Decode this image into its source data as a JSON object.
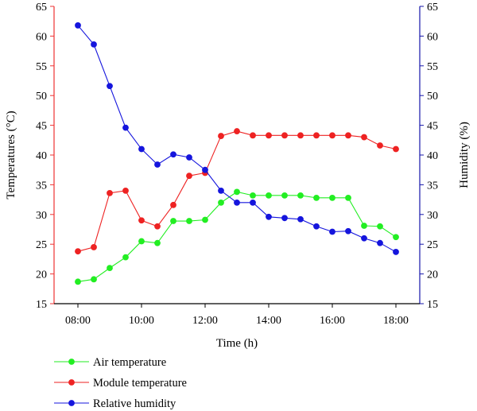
{
  "chart_data": {
    "type": "line",
    "xlabel": "Time (h)",
    "ylabel_left": "Temperatures (°C)",
    "ylabel_right": "Humidity (%)",
    "x_ticks": [
      "08:00",
      "10:00",
      "12:00",
      "14:00",
      "16:00",
      "18:00"
    ],
    "xlim": [
      "07:15",
      "18:45"
    ],
    "ylim_left": [
      15,
      65
    ],
    "ylim_right": [
      15,
      65
    ],
    "y_ticks_left": [
      15,
      20,
      25,
      30,
      35,
      40,
      45,
      50,
      55,
      60,
      65
    ],
    "y_ticks_right": [
      15,
      20,
      25,
      30,
      35,
      40,
      45,
      50,
      55,
      60,
      65
    ],
    "grid": false,
    "legend_position": "bottom-left",
    "x": [
      "08:00",
      "08:30",
      "09:00",
      "09:30",
      "10:00",
      "10:30",
      "11:00",
      "11:30",
      "12:00",
      "12:30",
      "13:00",
      "13:30",
      "14:00",
      "14:30",
      "15:00",
      "15:30",
      "16:00",
      "16:30",
      "17:00",
      "17:30",
      "18:00"
    ],
    "series": [
      {
        "name": "Air temperature",
        "axis": "left",
        "color": "#22ee22",
        "values": [
          18.7,
          19.1,
          21.0,
          22.8,
          25.5,
          25.2,
          28.9,
          28.9,
          29.1,
          32.0,
          33.8,
          33.2,
          33.2,
          33.2,
          33.2,
          32.8,
          32.8,
          32.8,
          28.1,
          28.0,
          26.2
        ]
      },
      {
        "name": "Module temperature",
        "axis": "left",
        "color": "#ee2222",
        "values": [
          23.8,
          24.5,
          33.6,
          34.0,
          29.0,
          28.0,
          31.6,
          36.5,
          37.0,
          43.2,
          44.0,
          43.3,
          43.3,
          43.3,
          43.3,
          43.3,
          43.3,
          43.3,
          43.0,
          41.6,
          41.0
        ]
      },
      {
        "name": "Relative humidity",
        "axis": "right",
        "color": "#1515dd",
        "values": [
          61.8,
          58.6,
          51.6,
          44.6,
          41.0,
          38.4,
          40.1,
          39.6,
          37.5,
          34.0,
          32.0,
          32.0,
          29.6,
          29.4,
          29.2,
          28.0,
          27.1,
          27.2,
          26.0,
          25.2,
          23.7
        ]
      }
    ],
    "axis_colors": {
      "left": "#ee3333",
      "right": "#1515aa",
      "bottom": "#000000"
    }
  }
}
